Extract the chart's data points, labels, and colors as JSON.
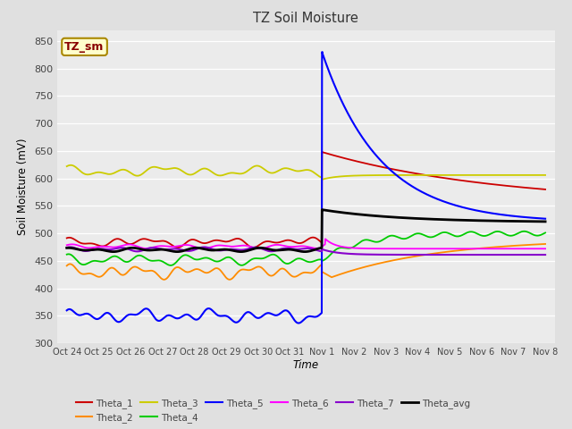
{
  "title": "TZ Soil Moisture",
  "ylabel": "Soil Moisture (mV)",
  "xlabel": "Time",
  "ylim": [
    300,
    870
  ],
  "yticks": [
    300,
    350,
    400,
    450,
    500,
    550,
    600,
    650,
    700,
    750,
    800,
    850
  ],
  "fig_bg": "#e0e0e0",
  "plot_bg": "#ebebeb",
  "legend_label": "TZ_sm",
  "tick_labels": [
    "Oct 24",
    "Oct 25",
    "Oct 26",
    "Oct 27",
    "Oct 28",
    "Oct 29",
    "Oct 30",
    "Oct 31",
    "Nov 1",
    "Nov 2",
    "Nov 3",
    "Nov 4",
    "Nov 5",
    "Nov 6",
    "Nov 7",
    "Nov 8"
  ],
  "series_colors": {
    "Theta_1": "#cc0000",
    "Theta_2": "#ff8c00",
    "Theta_3": "#cccc00",
    "Theta_4": "#00cc00",
    "Theta_5": "#0000ff",
    "Theta_6": "#ff00ff",
    "Theta_7": "#8800cc",
    "Theta_avg": "#000000"
  },
  "series_lw": {
    "Theta_1": 1.3,
    "Theta_2": 1.3,
    "Theta_3": 1.3,
    "Theta_4": 1.3,
    "Theta_5": 1.5,
    "Theta_6": 1.3,
    "Theta_7": 1.5,
    "Theta_avg": 2.0
  }
}
